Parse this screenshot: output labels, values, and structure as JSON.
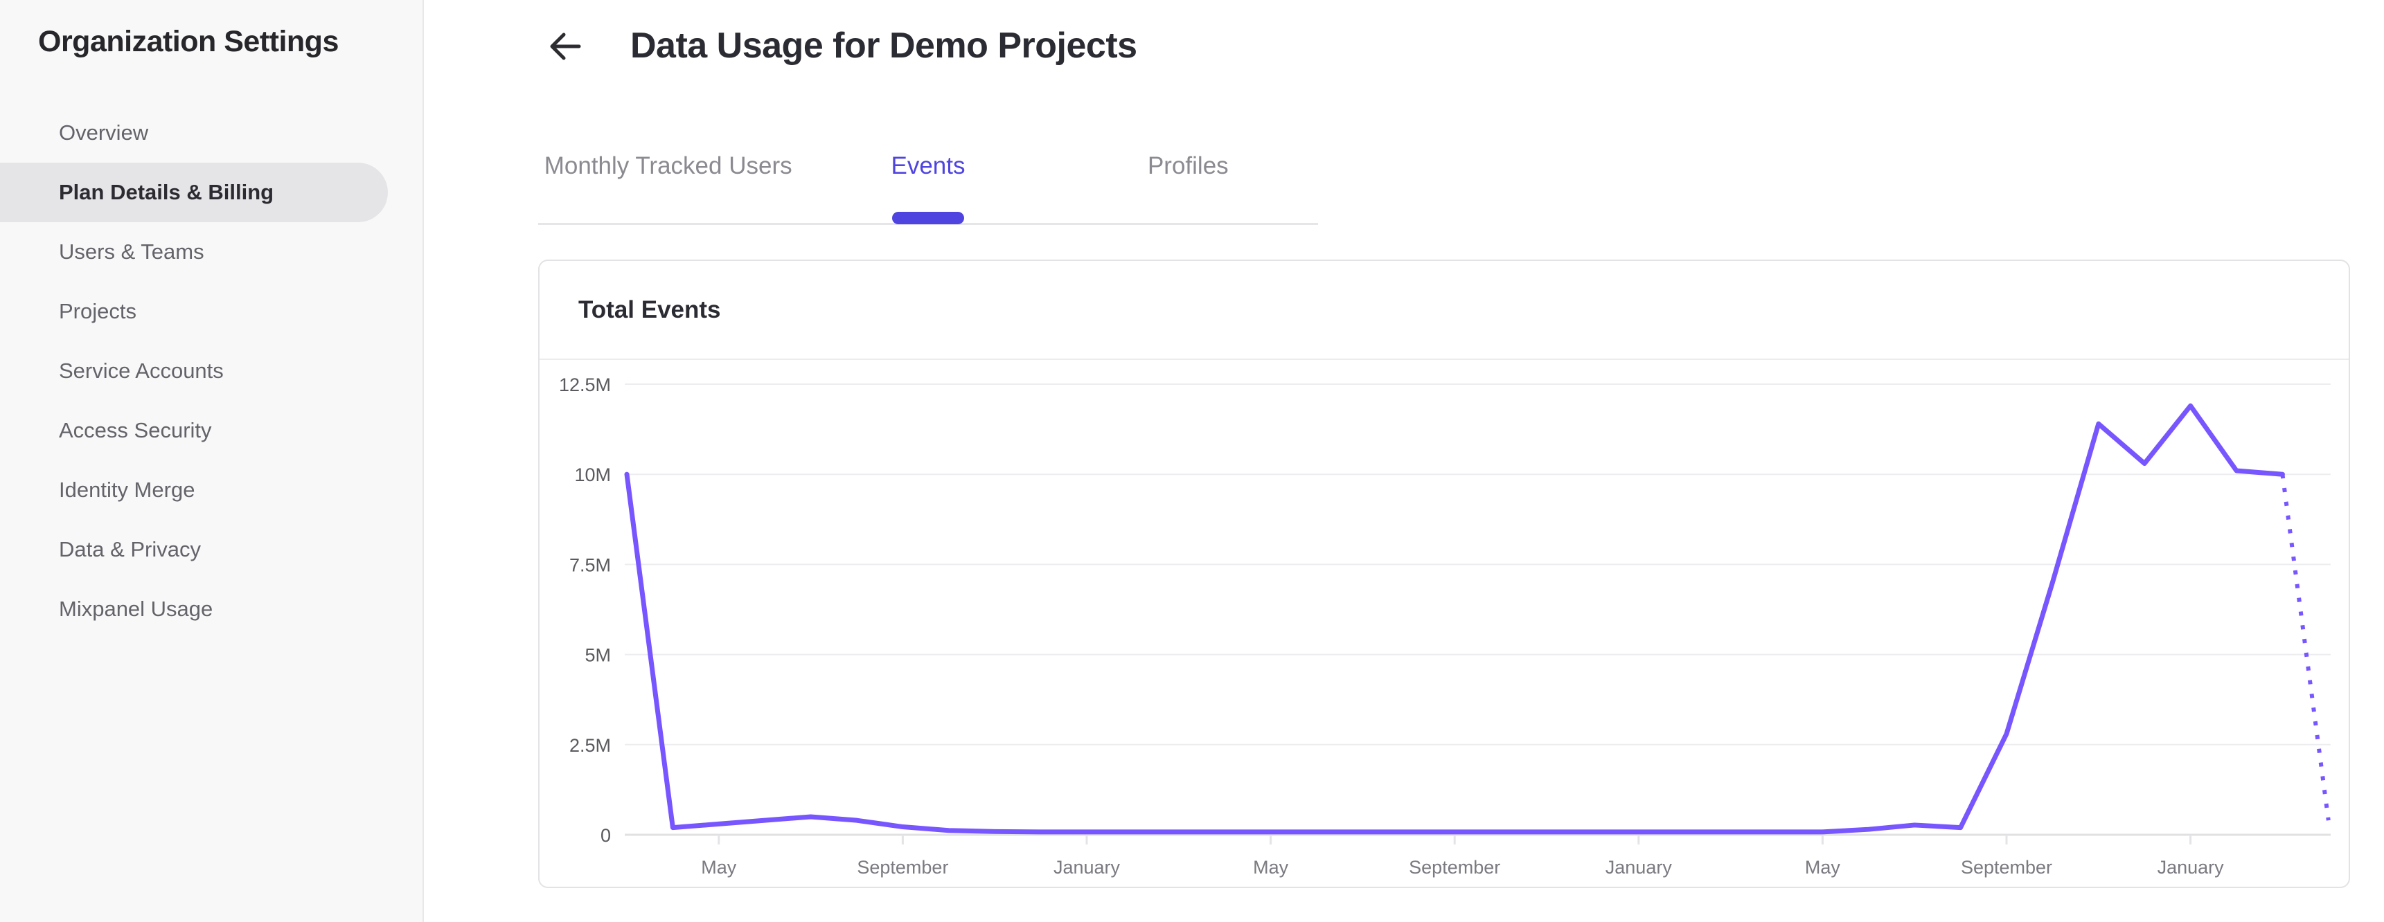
{
  "sidebar": {
    "title": "Organization Settings",
    "items": [
      {
        "label": "Overview",
        "selected": false
      },
      {
        "label": "Plan Details & Billing",
        "selected": true
      },
      {
        "label": "Users & Teams",
        "selected": false
      },
      {
        "label": "Projects",
        "selected": false
      },
      {
        "label": "Service Accounts",
        "selected": false
      },
      {
        "label": "Access Security",
        "selected": false
      },
      {
        "label": "Identity Merge",
        "selected": false
      },
      {
        "label": "Data & Privacy",
        "selected": false
      },
      {
        "label": "Mixpanel Usage",
        "selected": false
      }
    ]
  },
  "header": {
    "title": "Data Usage for Demo Projects",
    "back_icon": "left-arrow"
  },
  "tabs": {
    "items": [
      {
        "label": "Monthly Tracked Users",
        "active": false
      },
      {
        "label": "Events",
        "active": true
      },
      {
        "label": "Profiles",
        "active": false
      }
    ]
  },
  "card": {
    "title": "Total Events"
  },
  "colors": {
    "accent": "#4f44e0",
    "line": "#7856ff",
    "sidebar_bg": "#f8f8f8",
    "selected_pill_bg": "#e5e5e7"
  },
  "chart_data": {
    "type": "line",
    "title": "Total Events",
    "unit": "events (millions)",
    "grid": "horizontal",
    "legend": "none",
    "line_color": "#7856ff",
    "projected_style": "dotted",
    "ylim_millions": [
      0,
      12.5
    ],
    "y_tick_labels": [
      "12.5M",
      "10M",
      "7.5M",
      "5M",
      "2.5M",
      "0"
    ],
    "y_tick_values_millions": [
      12.5,
      10,
      7.5,
      5,
      2.5,
      0
    ],
    "x_tick_labels": [
      "May",
      "September",
      "January",
      "May",
      "September",
      "January",
      "May",
      "September",
      "January"
    ],
    "x_tick_indices": [
      2,
      6,
      10,
      14,
      18,
      22,
      26,
      30,
      34
    ],
    "projected_from_index": 36,
    "series": [
      {
        "name": "Total Events",
        "values_millions": [
          10,
          0.2,
          0.3,
          0.4,
          0.5,
          0.4,
          0.22,
          0.12,
          0.09,
          0.08,
          0.08,
          0.08,
          0.08,
          0.08,
          0.08,
          0.08,
          0.08,
          0.08,
          0.08,
          0.08,
          0.08,
          0.08,
          0.08,
          0.08,
          0.08,
          0.08,
          0.08,
          0.15,
          0.27,
          0.2,
          2.8,
          7,
          11.4,
          10.3,
          11.9,
          10.1,
          10,
          0.4
        ]
      }
    ]
  }
}
